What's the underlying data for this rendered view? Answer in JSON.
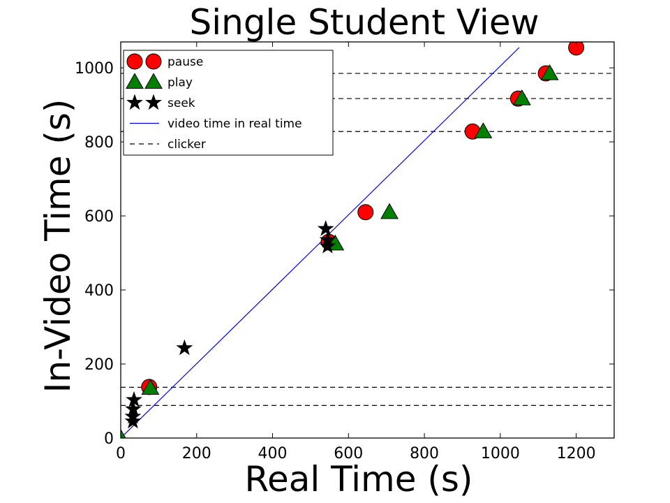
{
  "chart_data": {
    "type": "scatter",
    "title": "Single Student View",
    "xlabel": "Real Time (s)",
    "ylabel": "In-Video Time (s)",
    "xlim": [
      0,
      1300
    ],
    "ylim": [
      0,
      1070
    ],
    "xticks": [
      0,
      200,
      400,
      600,
      800,
      1000,
      1200
    ],
    "yticks": [
      0,
      200,
      400,
      600,
      800,
      1000
    ],
    "grid": false,
    "legend_position": "top-left",
    "series": [
      {
        "name": "pause",
        "marker": "circle",
        "color": "#ff0000",
        "points": [
          {
            "x": 75,
            "y": 138
          },
          {
            "x": 548,
            "y": 530
          },
          {
            "x": 645,
            "y": 610
          },
          {
            "x": 927,
            "y": 828
          },
          {
            "x": 1047,
            "y": 917
          },
          {
            "x": 1120,
            "y": 985
          },
          {
            "x": 1200,
            "y": 1055
          }
        ]
      },
      {
        "name": "play",
        "marker": "triangle",
        "color": "#008000",
        "points": [
          {
            "x": 0,
            "y": 0
          },
          {
            "x": 78,
            "y": 135
          },
          {
            "x": 565,
            "y": 525
          },
          {
            "x": 708,
            "y": 610
          },
          {
            "x": 955,
            "y": 828
          },
          {
            "x": 1057,
            "y": 917
          },
          {
            "x": 1130,
            "y": 985
          }
        ]
      },
      {
        "name": "seek",
        "marker": "star",
        "color": "#000000",
        "points": [
          {
            "x": 32,
            "y": 45
          },
          {
            "x": 32,
            "y": 58
          },
          {
            "x": 33,
            "y": 78
          },
          {
            "x": 35,
            "y": 103
          },
          {
            "x": 168,
            "y": 243
          },
          {
            "x": 540,
            "y": 565
          },
          {
            "x": 545,
            "y": 535
          },
          {
            "x": 545,
            "y": 518
          }
        ]
      },
      {
        "name": "video time in real time",
        "type": "line",
        "color": "#0000ff",
        "points": [
          {
            "x": 0,
            "y": 0
          },
          {
            "x": 1050,
            "y": 1055
          }
        ]
      },
      {
        "name": "clicker",
        "type": "hline-dashed",
        "color": "#000000",
        "values": [
          88,
          137,
          828,
          917,
          985
        ]
      }
    ]
  }
}
